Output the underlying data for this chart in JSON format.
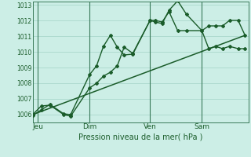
{
  "xlabel": "Pression niveau de la mer( hPa )",
  "bg_color": "#cceee6",
  "grid_color": "#aad8cc",
  "line_color": "#1a5c2a",
  "vline_color": "#3a7a5a",
  "ylim": [
    1005.5,
    1013.2
  ],
  "yticks": [
    1006,
    1007,
    1008,
    1009,
    1010,
    1011,
    1012,
    1013
  ],
  "xlim": [
    0,
    12.5
  ],
  "day_labels": [
    "Jeu",
    "Dim",
    "Ven",
    "Sam"
  ],
  "day_positions": [
    0.3,
    3.3,
    6.8,
    9.8
  ],
  "vline_positions": [
    0.3,
    3.3,
    6.8,
    9.8
  ],
  "line1_x": [
    0,
    0.5,
    1.0,
    1.8,
    2.2,
    3.3,
    3.7,
    4.1,
    4.5,
    4.9,
    5.3,
    5.8,
    6.8,
    7.1,
    7.5,
    7.9,
    8.4,
    8.9,
    9.8,
    10.2,
    10.6,
    11.0,
    11.4,
    11.9,
    12.3
  ],
  "line1_y": [
    1005.95,
    1006.3,
    1006.65,
    1006.05,
    1006.0,
    1008.55,
    1009.1,
    1010.35,
    1011.05,
    1010.3,
    1009.8,
    1009.85,
    1012.0,
    1012.0,
    1011.9,
    1012.55,
    1011.35,
    1011.35,
    1011.35,
    1011.65,
    1011.65,
    1011.65,
    1012.0,
    1012.0,
    1011.05
  ],
  "line2_x": [
    0,
    0.5,
    1.0,
    1.8,
    2.2,
    3.3,
    3.7,
    4.1,
    4.5,
    4.9,
    5.3,
    5.8,
    6.8,
    7.1,
    7.5,
    7.9,
    8.4,
    8.9,
    9.8,
    10.2,
    10.6,
    11.0,
    11.4,
    11.9,
    12.3
  ],
  "line2_y": [
    1006.0,
    1006.55,
    1006.6,
    1006.0,
    1005.9,
    1007.7,
    1008.0,
    1008.45,
    1008.7,
    1009.1,
    1010.3,
    1009.9,
    1012.0,
    1011.9,
    1011.8,
    1012.65,
    1013.25,
    1012.4,
    1011.35,
    1010.2,
    1010.35,
    1010.2,
    1010.35,
    1010.2,
    1010.2
  ],
  "line3_x": [
    0,
    12.3
  ],
  "line3_y": [
    1006.0,
    1011.05
  ]
}
